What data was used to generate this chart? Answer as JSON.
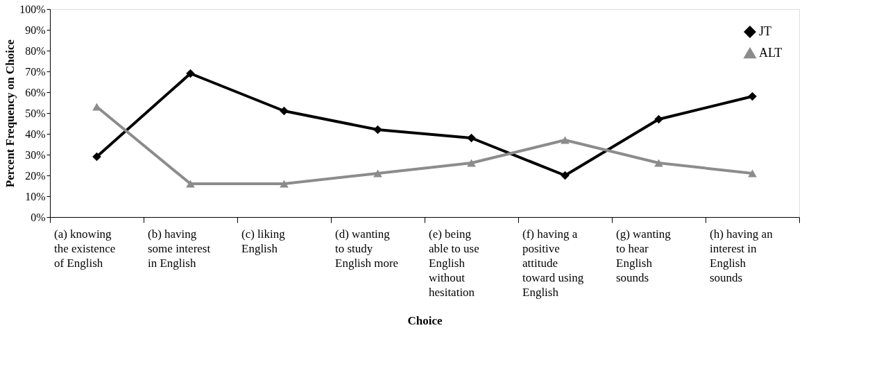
{
  "chart_data": {
    "type": "line",
    "xlabel": "Choice",
    "ylabel": "Percent Frequency on Choice",
    "categories": [
      "(a) knowing the existence of English",
      "(b) having some interest in English",
      "(c) liking English",
      "(d) wanting to study English more",
      "(e) being able to use English without hesitation",
      "(f) having a positive attitude toward using English",
      "(g) wanting to hear English sounds",
      "(h) having an interest in English sounds"
    ],
    "series": [
      {
        "name": "JT",
        "color": "#000000",
        "marker": "diamond",
        "values": [
          29,
          69,
          51,
          42,
          38,
          20,
          47,
          58
        ]
      },
      {
        "name": "ALT",
        "color": "#8c8c8c",
        "marker": "triangle",
        "values": [
          53,
          16,
          16,
          21,
          26,
          37,
          26,
          21
        ]
      }
    ],
    "ylim": [
      0,
      100
    ],
    "yticks": [
      {
        "value": 0,
        "label": "0%"
      },
      {
        "value": 10,
        "label": "10%"
      },
      {
        "value": 20,
        "label": "20%"
      },
      {
        "value": 30,
        "label": "30%"
      },
      {
        "value": 40,
        "label": "40%"
      },
      {
        "value": 50,
        "label": "50%"
      },
      {
        "value": 60,
        "label": "60%"
      },
      {
        "value": 70,
        "label": "70%"
      },
      {
        "value": 80,
        "label": "80%"
      },
      {
        "value": 90,
        "label": "90%"
      },
      {
        "value": 100,
        "label": "100%"
      }
    ],
    "grid": false,
    "legend": "top right",
    "line_style": "solid"
  }
}
